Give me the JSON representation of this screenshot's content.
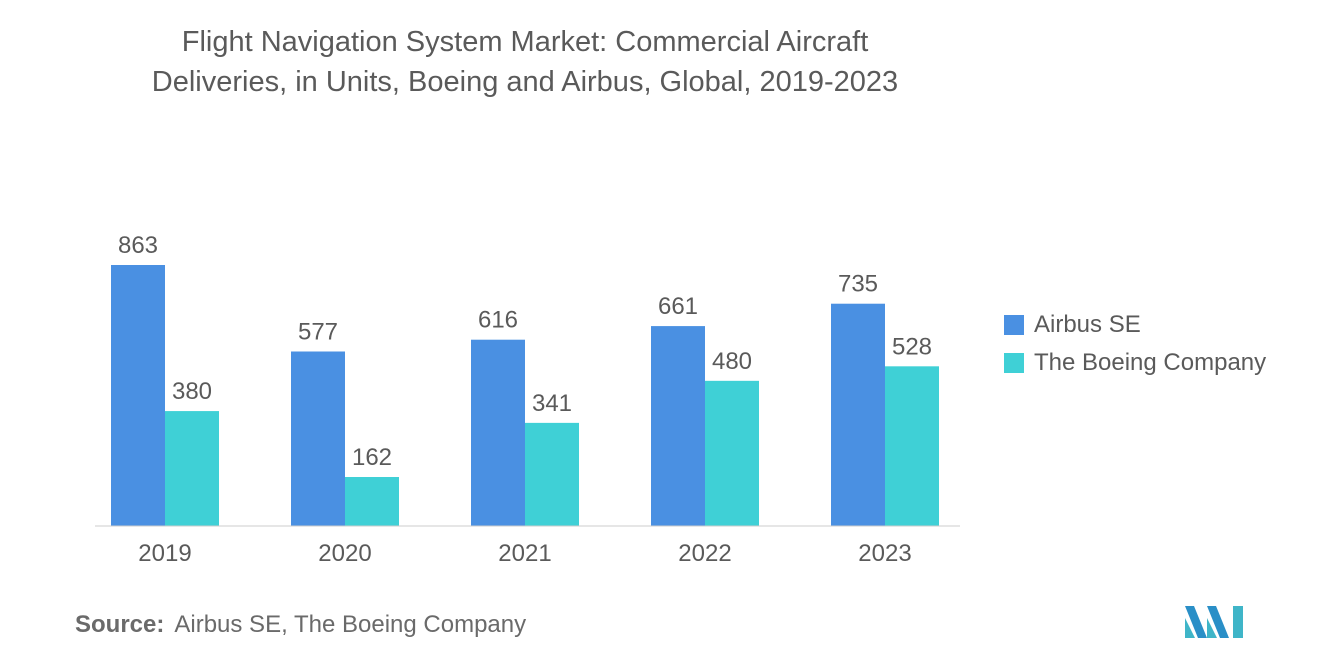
{
  "title_lines": [
    "Flight Navigation System Market: Commercial Aircraft",
    "Deliveries, in Units, Boeing and Airbus, Global, 2019-2023"
  ],
  "source": {
    "label": "Source:",
    "text": "Airbus SE, The Boeing Company"
  },
  "colors": {
    "airbus": "#4a90e2",
    "boeing": "#3fd0d6",
    "text": "#5a5a5a",
    "axis": "#cccccc"
  },
  "logo": {
    "icon": "mordor-intelligence-logo-icon"
  },
  "chart_data": {
    "type": "bar",
    "title": "Flight Navigation System Market: Commercial Aircraft Deliveries, in Units, Boeing and Airbus, Global, 2019-2023",
    "categories": [
      "2019",
      "2020",
      "2021",
      "2022",
      "2023"
    ],
    "series": [
      {
        "name": "Airbus SE",
        "values": [
          863,
          577,
          616,
          661,
          735
        ]
      },
      {
        "name": "The Boeing Company",
        "values": [
          380,
          162,
          341,
          480,
          528
        ]
      }
    ],
    "xlabel": "",
    "ylabel": "",
    "ylim": [
      0,
      863
    ],
    "grid": false,
    "legend": "right"
  }
}
